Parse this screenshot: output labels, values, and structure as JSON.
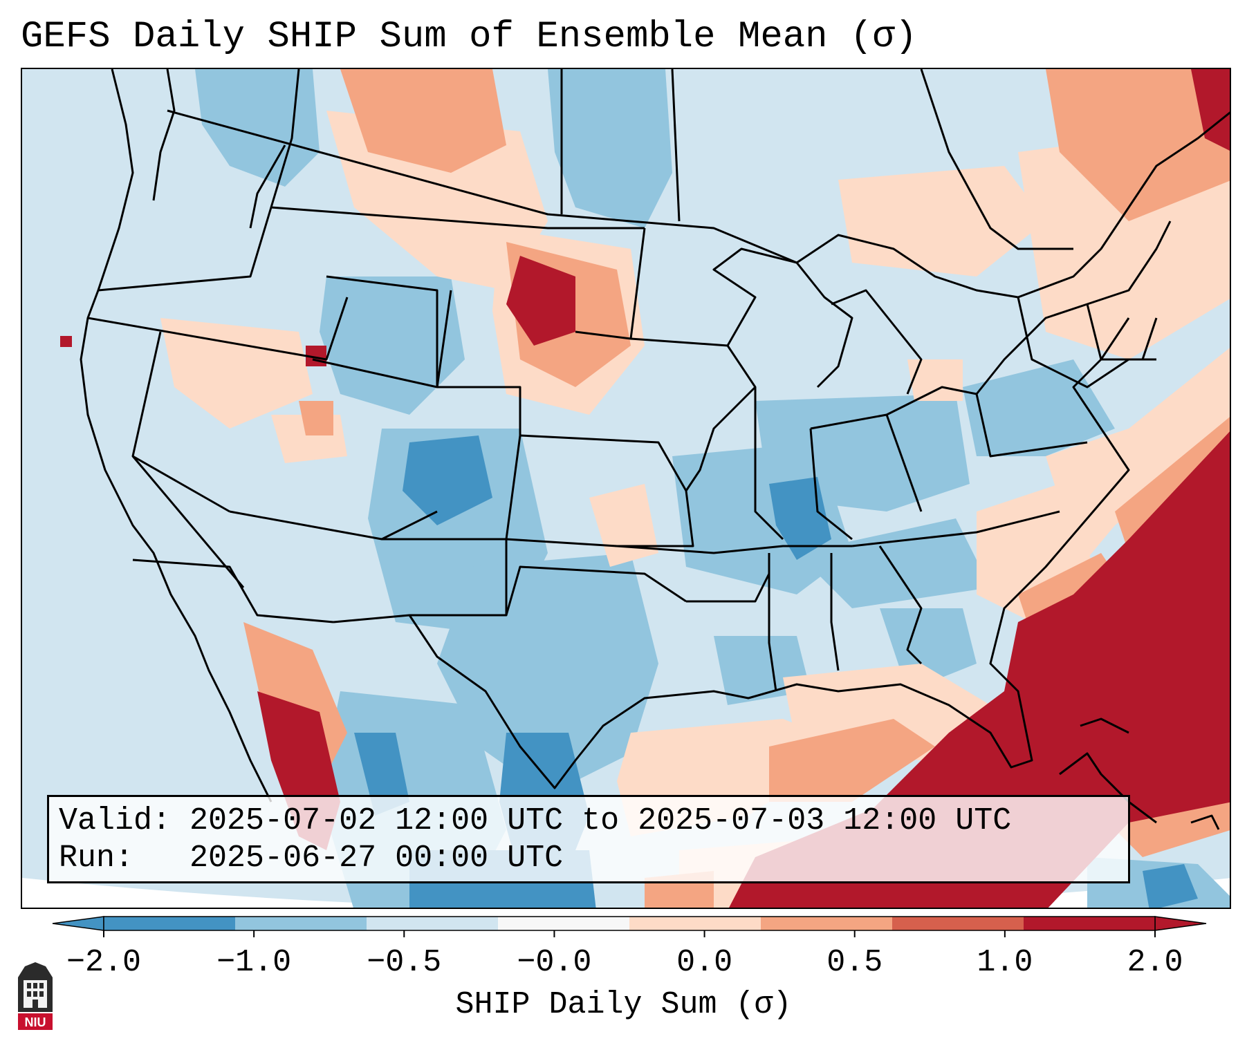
{
  "title": "GEFS Daily SHIP Sum of Ensemble Mean (σ)",
  "info": {
    "valid_label": "Valid:",
    "valid_value": "2025-07-02 12:00 UTC to 2025-07-03 12:00 UTC",
    "run_label": "Run:",
    "run_value": "2025-06-27 00:00 UTC"
  },
  "colorbar": {
    "label": "SHIP Daily Sum (σ)",
    "ticks": [
      "−2.0",
      "−1.0",
      "−0.5",
      "−0.0",
      "0.0",
      "0.5",
      "1.0",
      "2.0"
    ],
    "colors": [
      "#4393c3",
      "#92c5de",
      "#d1e5f0",
      "#f7f7f7",
      "#fddbc7",
      "#f4a582",
      "#d6604d",
      "#b2182b"
    ]
  },
  "logo": {
    "text": "NIU"
  },
  "icons": {
    "logo": "niu-logo-icon"
  }
}
